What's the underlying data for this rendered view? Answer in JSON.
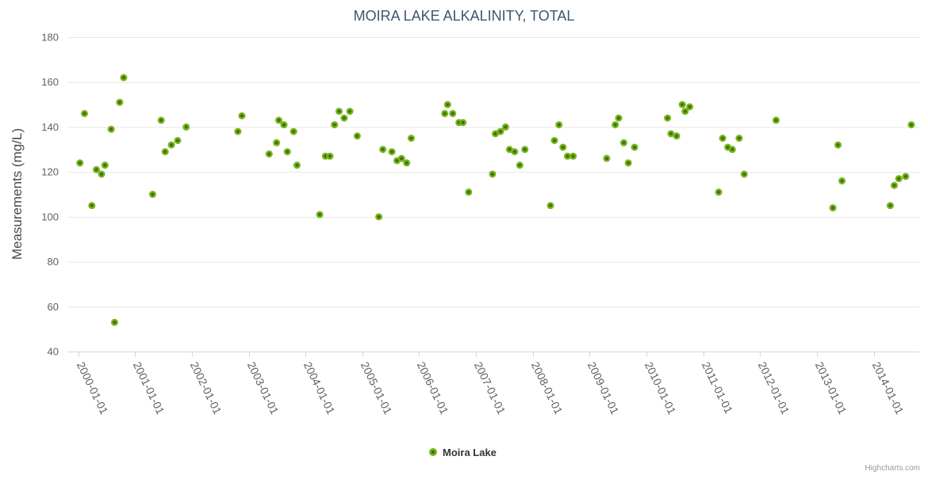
{
  "chart": {
    "title": "MOIRA LAKE ALKALINITY, TOTAL",
    "credits": "Highcharts.com"
  },
  "legend": {
    "items": [
      {
        "label": "Moira Lake",
        "marker_color": "#76b41e"
      }
    ]
  },
  "colors": {
    "background": "#ffffff",
    "title": "#3E576F",
    "y_axis_title": "#4a4a4a",
    "axis_labels": "#606063",
    "axis_line": "#ccd6eb",
    "gridline": "#e6e6e6",
    "legend_text": "#333333",
    "credits": "#999999",
    "marker_fill": "#76b41e",
    "marker_center": "#3e6d08"
  },
  "chart_data": {
    "type": "scatter",
    "title": "MOIRA LAKE ALKALINITY, TOTAL",
    "xlabel": "",
    "ylabel": "Measurements (mg/L)",
    "x_tick_labels": [
      "2000-01-01",
      "2001-01-01",
      "2002-01-01",
      "2003-01-01",
      "2004-01-01",
      "2005-01-01",
      "2006-01-01",
      "2007-01-01",
      "2008-01-01",
      "2009-01-01",
      "2010-01-01",
      "2011-01-01",
      "2012-01-01",
      "2013-01-01",
      "2014-01-01"
    ],
    "x_tick_years": [
      2000,
      2001,
      2002,
      2003,
      2004,
      2005,
      2006,
      2007,
      2008,
      2009,
      2010,
      2011,
      2012,
      2013,
      2014
    ],
    "x_range": [
      1999.81,
      2014.8
    ],
    "ylim": [
      40,
      180
    ],
    "y_ticks": [
      40,
      60,
      80,
      100,
      120,
      140,
      160,
      180
    ],
    "grid": true,
    "legend_position": "bottom-center",
    "series": [
      {
        "name": "Moira Lake",
        "points": [
          [
            2000.03,
            124
          ],
          [
            2000.11,
            146
          ],
          [
            2000.24,
            105
          ],
          [
            2000.32,
            121
          ],
          [
            2000.41,
            119
          ],
          [
            2000.47,
            123
          ],
          [
            2000.58,
            139
          ],
          [
            2000.64,
            53
          ],
          [
            2000.73,
            151
          ],
          [
            2000.8,
            162
          ],
          [
            2001.31,
            110
          ],
          [
            2001.46,
            143
          ],
          [
            2001.53,
            129
          ],
          [
            2001.64,
            132
          ],
          [
            2001.75,
            134
          ],
          [
            2001.9,
            140
          ],
          [
            2002.81,
            138
          ],
          [
            2002.88,
            145
          ],
          [
            2003.36,
            128
          ],
          [
            2003.49,
            133
          ],
          [
            2003.53,
            143
          ],
          [
            2003.62,
            141
          ],
          [
            2003.68,
            129
          ],
          [
            2003.79,
            138
          ],
          [
            2003.85,
            123
          ],
          [
            2004.25,
            101
          ],
          [
            2004.35,
            127
          ],
          [
            2004.43,
            127
          ],
          [
            2004.51,
            141
          ],
          [
            2004.59,
            147
          ],
          [
            2004.68,
            144
          ],
          [
            2004.78,
            147
          ],
          [
            2004.91,
            136
          ],
          [
            2005.29,
            100
          ],
          [
            2005.36,
            130
          ],
          [
            2005.52,
            129
          ],
          [
            2005.61,
            125
          ],
          [
            2005.69,
            126
          ],
          [
            2005.78,
            124
          ],
          [
            2005.86,
            135
          ],
          [
            2006.45,
            146
          ],
          [
            2006.5,
            150
          ],
          [
            2006.59,
            146
          ],
          [
            2006.7,
            142
          ],
          [
            2006.77,
            142
          ],
          [
            2006.87,
            111
          ],
          [
            2007.29,
            119
          ],
          [
            2007.34,
            137
          ],
          [
            2007.43,
            138
          ],
          [
            2007.52,
            140
          ],
          [
            2007.59,
            130
          ],
          [
            2007.68,
            129
          ],
          [
            2007.77,
            123
          ],
          [
            2007.86,
            130
          ],
          [
            2008.31,
            105
          ],
          [
            2008.38,
            134
          ],
          [
            2008.46,
            141
          ],
          [
            2008.53,
            131
          ],
          [
            2008.61,
            127
          ],
          [
            2008.71,
            127
          ],
          [
            2009.3,
            126
          ],
          [
            2009.45,
            141
          ],
          [
            2009.51,
            144
          ],
          [
            2009.6,
            133
          ],
          [
            2009.68,
            124
          ],
          [
            2009.79,
            131
          ],
          [
            2010.37,
            144
          ],
          [
            2010.43,
            137
          ],
          [
            2010.53,
            136
          ],
          [
            2010.63,
            150
          ],
          [
            2010.68,
            147
          ],
          [
            2010.76,
            149
          ],
          [
            2011.27,
            111
          ],
          [
            2011.34,
            135
          ],
          [
            2011.43,
            131
          ],
          [
            2011.51,
            130
          ],
          [
            2011.63,
            135
          ],
          [
            2011.72,
            119
          ],
          [
            2012.28,
            143
          ],
          [
            2013.28,
            104
          ],
          [
            2013.37,
            132
          ],
          [
            2013.44,
            116
          ],
          [
            2014.29,
            105
          ],
          [
            2014.36,
            114
          ],
          [
            2014.44,
            117
          ],
          [
            2014.56,
            118
          ],
          [
            2014.66,
            141
          ]
        ]
      }
    ]
  }
}
